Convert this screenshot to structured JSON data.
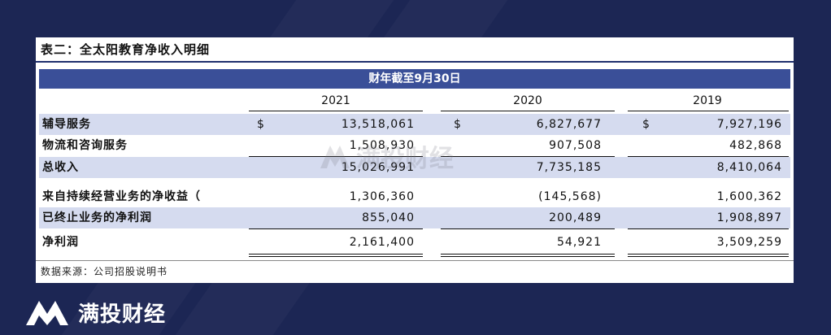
{
  "title": "表二：全太阳教育净收入明细",
  "period_header": "财年截至9月30日",
  "years": [
    "2021",
    "2020",
    "2019"
  ],
  "currency_symbol": "$",
  "rows": [
    {
      "label": "辅导服务",
      "values": [
        "13,518,061",
        "6,827,677",
        "7,927,196"
      ]
    },
    {
      "label": "物流和咨询服务",
      "values": [
        "1,508,930",
        "907,508",
        "482,868"
      ]
    },
    {
      "label": "总收入",
      "values": [
        "15,026,991",
        "7,735,185",
        "8,410,064"
      ]
    },
    {
      "label": "来自持续经营业务的净收益（",
      "values": [
        "1,306,360",
        "(145,568)",
        "1,600,362"
      ]
    },
    {
      "label": "已终止业务的净利润",
      "values": [
        "855,040",
        "200,489",
        "1,908,897"
      ]
    },
    {
      "label": "净利润",
      "values": [
        "2,161,400",
        "54,921",
        "3,509,259"
      ]
    }
  ],
  "source": "数据来源：公司招股说明书",
  "watermark": "满投财经",
  "brand": "满投财经",
  "colors": {
    "background": "#1c2654",
    "band": "#3a4f98",
    "shade": "#d5dbef"
  }
}
